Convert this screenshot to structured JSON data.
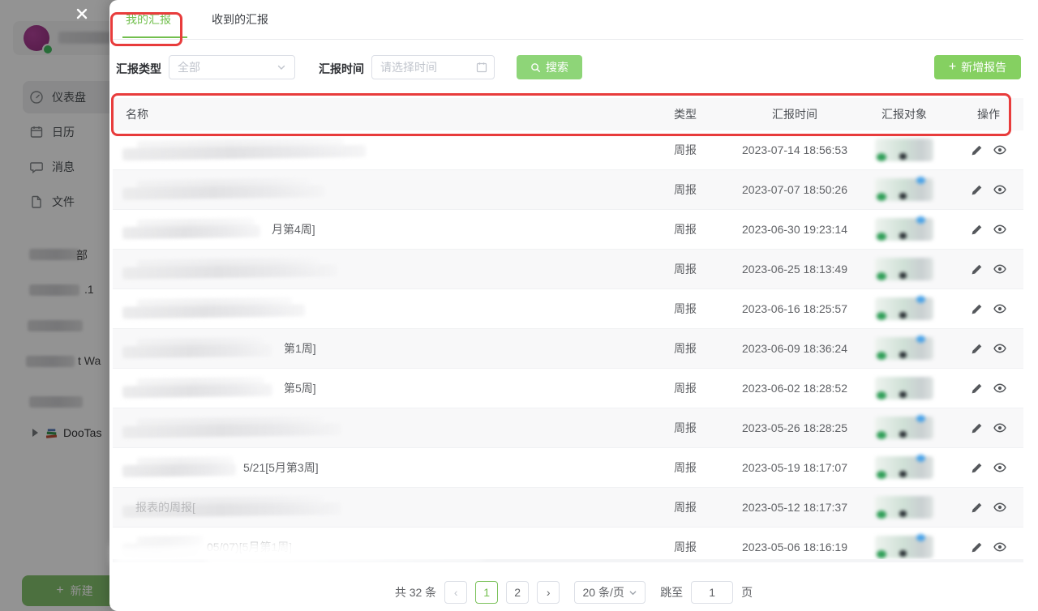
{
  "sidebar": {
    "menu": [
      {
        "label": "仪表盘"
      },
      {
        "label": "日历"
      },
      {
        "label": "消息"
      },
      {
        "label": "文件"
      }
    ],
    "projects": [
      {
        "fragment": "部"
      },
      {
        "fragment": ".1"
      },
      {
        "fragment": ""
      },
      {
        "fragment": "t Wa"
      },
      {
        "fragment": ""
      }
    ],
    "tree": {
      "label": "DooTas"
    },
    "new_button_label": "新建",
    "plus": "+"
  },
  "modal": {
    "tabs": [
      {
        "label": "我的汇报"
      },
      {
        "label": "收到的汇报"
      }
    ],
    "filters": {
      "type_label": "汇报类型",
      "type_value": "全部",
      "time_label": "汇报时间",
      "time_placeholder": "请选择时间",
      "search_label": "搜索",
      "add_label": "新增报告",
      "plus": "+"
    },
    "table": {
      "headers": [
        "名称",
        "类型",
        "汇报时间",
        "汇报对象",
        "操作"
      ],
      "rows": [
        {
          "fragment": "",
          "type": "周报",
          "time": "2023-07-14 18:56:53"
        },
        {
          "fragment": "",
          "type": "周报",
          "time": "2023-07-07 18:50:26"
        },
        {
          "fragment": "月第4周]",
          "type": "周报",
          "time": "2023-06-30 19:23:14"
        },
        {
          "fragment": "",
          "type": "周报",
          "time": "2023-06-25 18:13:49"
        },
        {
          "fragment": "",
          "type": "周报",
          "time": "2023-06-16 18:25:57"
        },
        {
          "fragment": "第1周]",
          "type": "周报",
          "time": "2023-06-09 18:36:24"
        },
        {
          "fragment": "第5周]",
          "type": "周报",
          "time": "2023-06-02 18:28:52"
        },
        {
          "fragment": "",
          "type": "周报",
          "time": "2023-05-26 18:28:25"
        },
        {
          "fragment": "5/21[5月第3周]",
          "type": "周报",
          "time": "2023-05-19 18:17:07"
        },
        {
          "fragment": "报表的周报[",
          "type": "周报",
          "time": "2023-05-12 18:17:37",
          "faint": true
        },
        {
          "fragment": "05/07)[5月第1周]",
          "type": "周报",
          "time": "2023-05-06 18:16:19"
        }
      ]
    },
    "pagination": {
      "total": "共 32 条",
      "prev_icon": "‹",
      "next_icon": "›",
      "pages": [
        "1",
        "2"
      ],
      "page_size": "20 条/页",
      "jump_label": "跳至",
      "jump_value": "1",
      "jump_suffix": "页"
    }
  },
  "colors": {
    "accent_green": "#72bf4e",
    "button_green": "#8ed578",
    "annotation_red": "#e83c3c"
  }
}
